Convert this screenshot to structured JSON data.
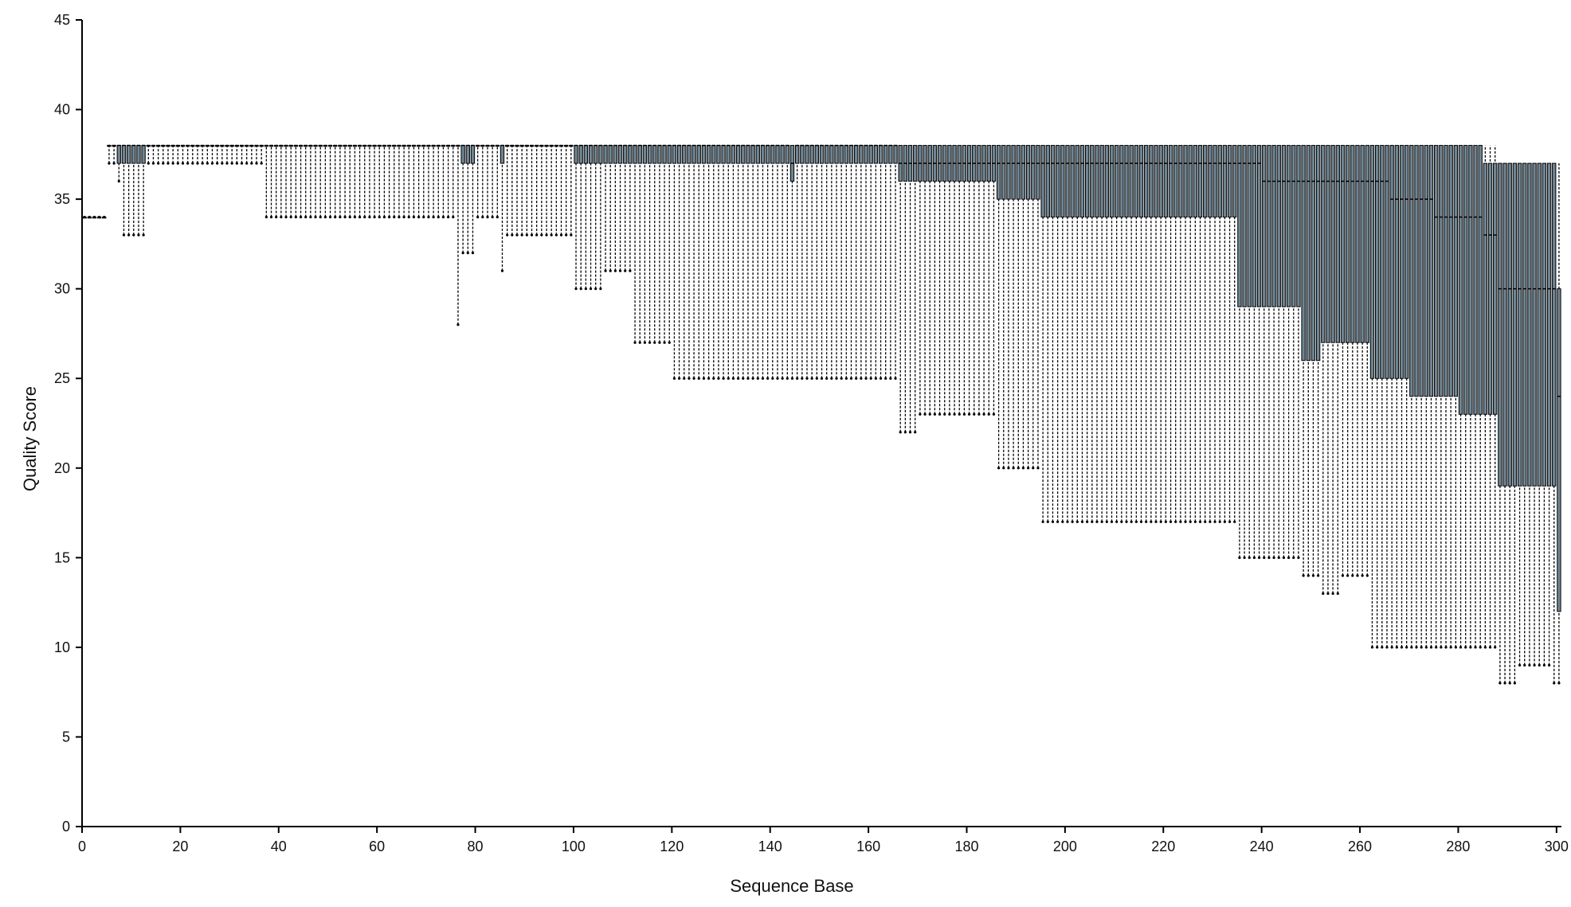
{
  "chart_data": {
    "type": "box",
    "xlabel": "Sequence Base",
    "ylabel": "Quality Score",
    "xlim": [
      0,
      301
    ],
    "ylim": [
      0,
      45
    ],
    "xticks": [
      0,
      20,
      40,
      60,
      80,
      100,
      120,
      140,
      160,
      180,
      200,
      220,
      240,
      260,
      280,
      300
    ],
    "yticks": [
      0,
      5,
      10,
      15,
      20,
      25,
      30,
      35,
      40,
      45
    ],
    "box_fill_color": "#6f8593",
    "box_stroke_color": "#000000",
    "whisker_style": "dotted",
    "position_groups": [
      {
        "from": 1,
        "to": 5,
        "whisker_low": 34,
        "q1": 34,
        "median": 34,
        "q3": 34,
        "whisker_high": 34
      },
      {
        "from": 6,
        "to": 7,
        "whisker_low": 37,
        "q1": 38,
        "median": 38,
        "q3": 38,
        "whisker_high": 38
      },
      {
        "from": 8,
        "to": 8,
        "whisker_low": 36,
        "q1": 37,
        "median": 38,
        "q3": 38,
        "whisker_high": 38
      },
      {
        "from": 9,
        "to": 13,
        "whisker_low": 33,
        "q1": 37,
        "median": 38,
        "q3": 38,
        "whisker_high": 38
      },
      {
        "from": 14,
        "to": 37,
        "whisker_low": 37,
        "q1": 38,
        "median": 38,
        "q3": 38,
        "whisker_high": 38
      },
      {
        "from": 38,
        "to": 76,
        "whisker_low": 34,
        "q1": 38,
        "median": 38,
        "q3": 38,
        "whisker_high": 38
      },
      {
        "from": 77,
        "to": 77,
        "whisker_low": 28,
        "q1": 38,
        "median": 38,
        "q3": 38,
        "whisker_high": 38
      },
      {
        "from": 78,
        "to": 80,
        "whisker_low": 32,
        "q1": 37,
        "median": 38,
        "q3": 38,
        "whisker_high": 38
      },
      {
        "from": 81,
        "to": 85,
        "whisker_low": 34,
        "q1": 38,
        "median": 38,
        "q3": 38,
        "whisker_high": 38
      },
      {
        "from": 86,
        "to": 86,
        "whisker_low": 31,
        "q1": 37,
        "median": 38,
        "q3": 38,
        "whisker_high": 38
      },
      {
        "from": 87,
        "to": 100,
        "whisker_low": 33,
        "q1": 38,
        "median": 38,
        "q3": 38,
        "whisker_high": 38
      },
      {
        "from": 101,
        "to": 106,
        "whisker_low": 30,
        "q1": 37,
        "median": 38,
        "q3": 38,
        "whisker_high": 38
      },
      {
        "from": 107,
        "to": 112,
        "whisker_low": 31,
        "q1": 37,
        "median": 38,
        "q3": 38,
        "whisker_high": 38
      },
      {
        "from": 113,
        "to": 120,
        "whisker_low": 27,
        "q1": 37,
        "median": 38,
        "q3": 38,
        "whisker_high": 38
      },
      {
        "from": 121,
        "to": 134,
        "whisker_low": 25,
        "q1": 37,
        "median": 38,
        "q3": 38,
        "whisker_high": 38
      },
      {
        "from": 135,
        "to": 144,
        "whisker_low": 25,
        "q1": 37,
        "median": 38,
        "q3": 38,
        "whisker_high": 38
      },
      {
        "from": 145,
        "to": 145,
        "whisker_low": 25,
        "q1": 36,
        "median": 37,
        "q3": 38,
        "whisker_high": 38
      },
      {
        "from": 146,
        "to": 166,
        "whisker_low": 25,
        "q1": 37,
        "median": 38,
        "q3": 38,
        "whisker_high": 38
      },
      {
        "from": 167,
        "to": 170,
        "whisker_low": 22,
        "q1": 36,
        "median": 37,
        "q3": 38,
        "whisker_high": 38
      },
      {
        "from": 171,
        "to": 180,
        "whisker_low": 23,
        "q1": 36,
        "median": 37,
        "q3": 38,
        "whisker_high": 38
      },
      {
        "from": 181,
        "to": 186,
        "whisker_low": 23,
        "q1": 36,
        "median": 37,
        "q3": 38,
        "whisker_high": 38
      },
      {
        "from": 187,
        "to": 195,
        "whisker_low": 20,
        "q1": 35,
        "median": 37,
        "q3": 38,
        "whisker_high": 38
      },
      {
        "from": 196,
        "to": 208,
        "whisker_low": 17,
        "q1": 34,
        "median": 37,
        "q3": 38,
        "whisker_high": 38
      },
      {
        "from": 209,
        "to": 222,
        "whisker_low": 17,
        "q1": 34,
        "median": 37,
        "q3": 38,
        "whisker_high": 38
      },
      {
        "from": 223,
        "to": 235,
        "whisker_low": 17,
        "q1": 34,
        "median": 37,
        "q3": 38,
        "whisker_high": 38
      },
      {
        "from": 236,
        "to": 240,
        "whisker_low": 15,
        "q1": 29,
        "median": 37,
        "q3": 38,
        "whisker_high": 38
      },
      {
        "from": 241,
        "to": 248,
        "whisker_low": 15,
        "q1": 29,
        "median": 36,
        "q3": 38,
        "whisker_high": 38
      },
      {
        "from": 249,
        "to": 252,
        "whisker_low": 14,
        "q1": 26,
        "median": 36,
        "q3": 38,
        "whisker_high": 38
      },
      {
        "from": 253,
        "to": 256,
        "whisker_low": 13,
        "q1": 27,
        "median": 36,
        "q3": 38,
        "whisker_high": 38
      },
      {
        "from": 257,
        "to": 262,
        "whisker_low": 14,
        "q1": 27,
        "median": 36,
        "q3": 38,
        "whisker_high": 38
      },
      {
        "from": 263,
        "to": 266,
        "whisker_low": 10,
        "q1": 25,
        "median": 36,
        "q3": 38,
        "whisker_high": 38
      },
      {
        "from": 267,
        "to": 270,
        "whisker_low": 10,
        "q1": 25,
        "median": 35,
        "q3": 38,
        "whisker_high": 38
      },
      {
        "from": 271,
        "to": 275,
        "whisker_low": 10,
        "q1": 24,
        "median": 35,
        "q3": 38,
        "whisker_high": 38
      },
      {
        "from": 276,
        "to": 280,
        "whisker_low": 10,
        "q1": 24,
        "median": 34,
        "q3": 38,
        "whisker_high": 38
      },
      {
        "from": 281,
        "to": 285,
        "whisker_low": 10,
        "q1": 23,
        "median": 34,
        "q3": 38,
        "whisker_high": 38
      },
      {
        "from": 286,
        "to": 288,
        "whisker_low": 10,
        "q1": 23,
        "median": 33,
        "q3": 37,
        "whisker_high": 38
      },
      {
        "from": 289,
        "to": 292,
        "whisker_low": 8,
        "q1": 19,
        "median": 30,
        "q3": 37,
        "whisker_high": 37
      },
      {
        "from": 293,
        "to": 299,
        "whisker_low": 9,
        "q1": 19,
        "median": 30,
        "q3": 37,
        "whisker_high": 37
      },
      {
        "from": 300,
        "to": 300,
        "whisker_low": 8,
        "q1": 19,
        "median": 30,
        "q3": 37,
        "whisker_high": 37
      },
      {
        "from": 301,
        "to": 301,
        "whisker_low": 8,
        "q1": 12,
        "median": 24,
        "q3": 30,
        "whisker_high": 37
      }
    ]
  }
}
